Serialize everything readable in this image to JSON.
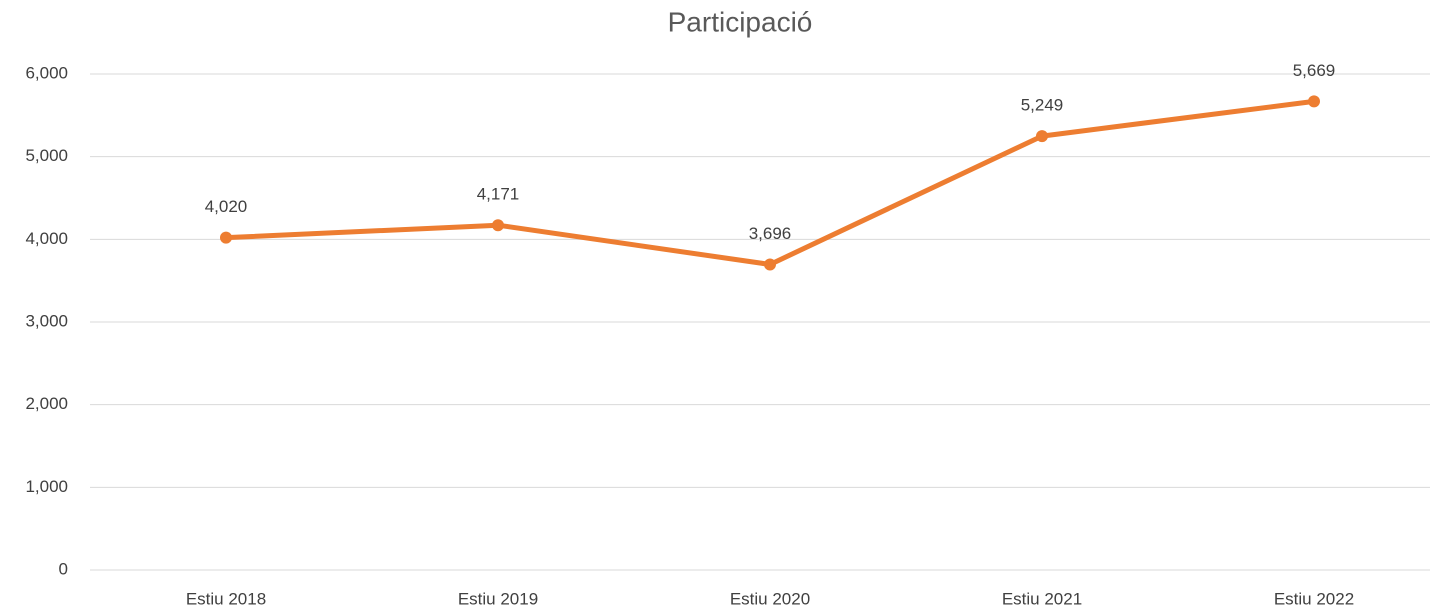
{
  "chart_data": {
    "type": "line",
    "title": "Participació",
    "categories": [
      "Estiu 2018",
      "Estiu 2019",
      "Estiu 2020",
      "Estiu 2021",
      "Estiu 2022"
    ],
    "series": [
      {
        "name": "Participació",
        "color": "#ed7d31",
        "values": [
          4020,
          4171,
          3696,
          5249,
          5669
        ],
        "value_labels": [
          "4,020",
          "4,171",
          "3,696",
          "5,249",
          "5,669"
        ]
      }
    ],
    "ylim": [
      0,
      6000
    ],
    "yticks": [
      0,
      {
        "value": 1000,
        "label": "1,000"
      },
      {
        "value": 2000,
        "label": "2,000"
      },
      {
        "value": 3000,
        "label": "3,000"
      },
      {
        "value": 4000,
        "label": "4,000"
      },
      {
        "value": 5000,
        "label": "5,000"
      },
      {
        "value": 6000,
        "label": "6,000"
      }
    ],
    "grid": true
  }
}
